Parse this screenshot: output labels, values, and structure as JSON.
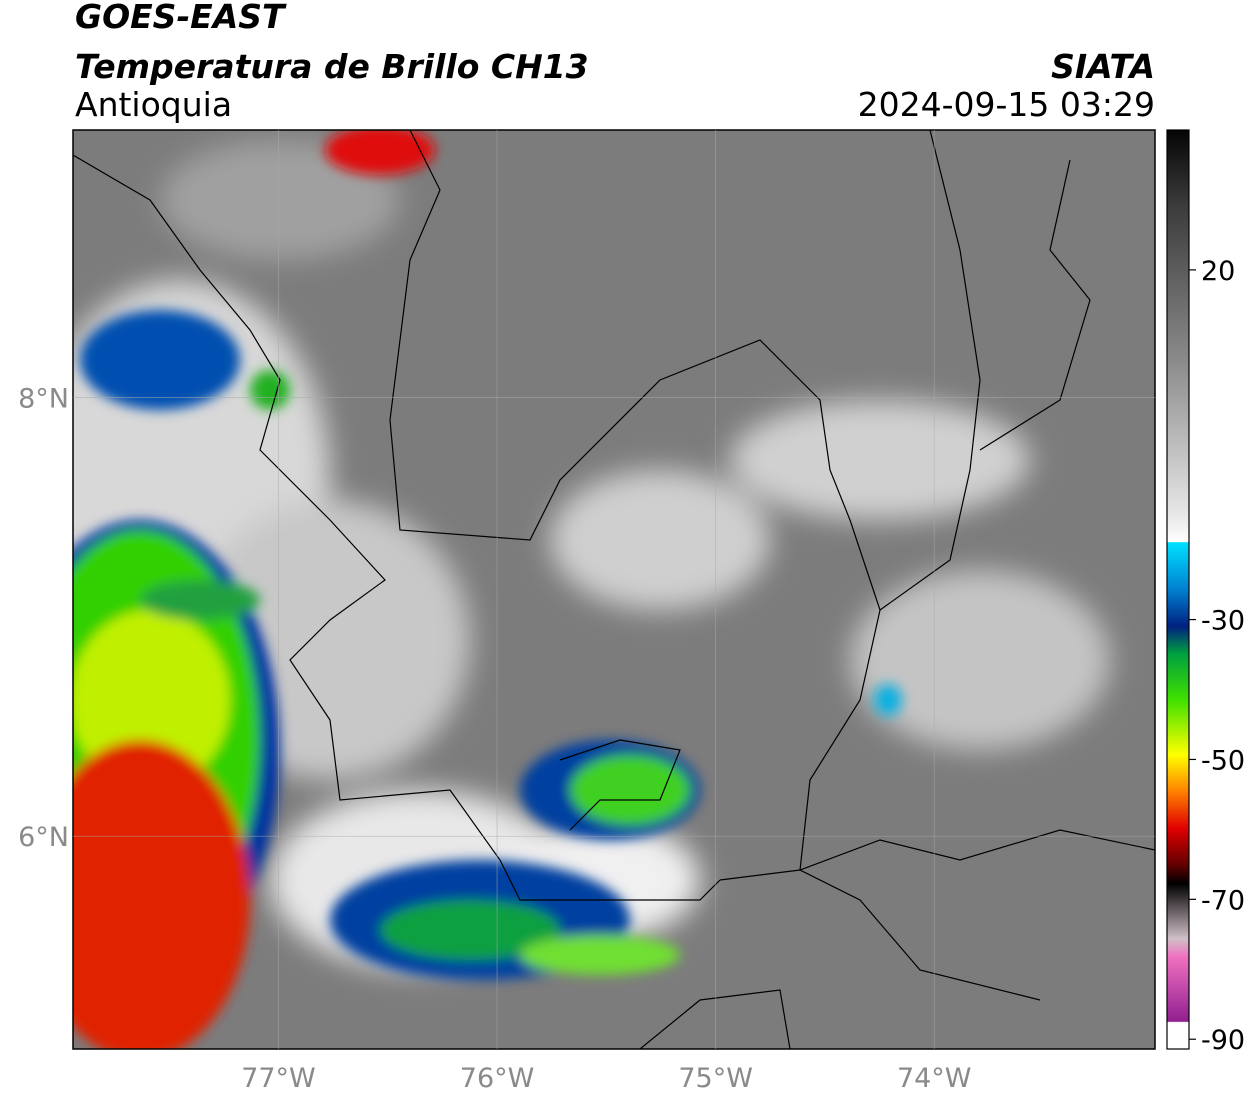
{
  "header": {
    "title": "GOES-EAST",
    "subtitle": "Temperatura de Brillo CH13",
    "region": "Antioquia",
    "source": "SIATA",
    "timestamp": "2024-09-15 03:29"
  },
  "map": {
    "lon_range": [
      -77.94,
      -72.99
    ],
    "lat_range": [
      5.03,
      9.22
    ],
    "lat_ticks": [
      {
        "value": 8,
        "label": "8°N"
      },
      {
        "value": 6,
        "label": "6°N"
      }
    ],
    "lon_ticks": [
      {
        "value": -77,
        "label": "77°W"
      },
      {
        "value": -76,
        "label": "76°W"
      },
      {
        "value": -75,
        "label": "75°W"
      },
      {
        "value": -74,
        "label": "74°W"
      }
    ]
  },
  "colorbar": {
    "lim": [
      -91.4,
      40
    ],
    "ticks": [
      20,
      -30,
      -50,
      -70,
      -90
    ]
  }
}
